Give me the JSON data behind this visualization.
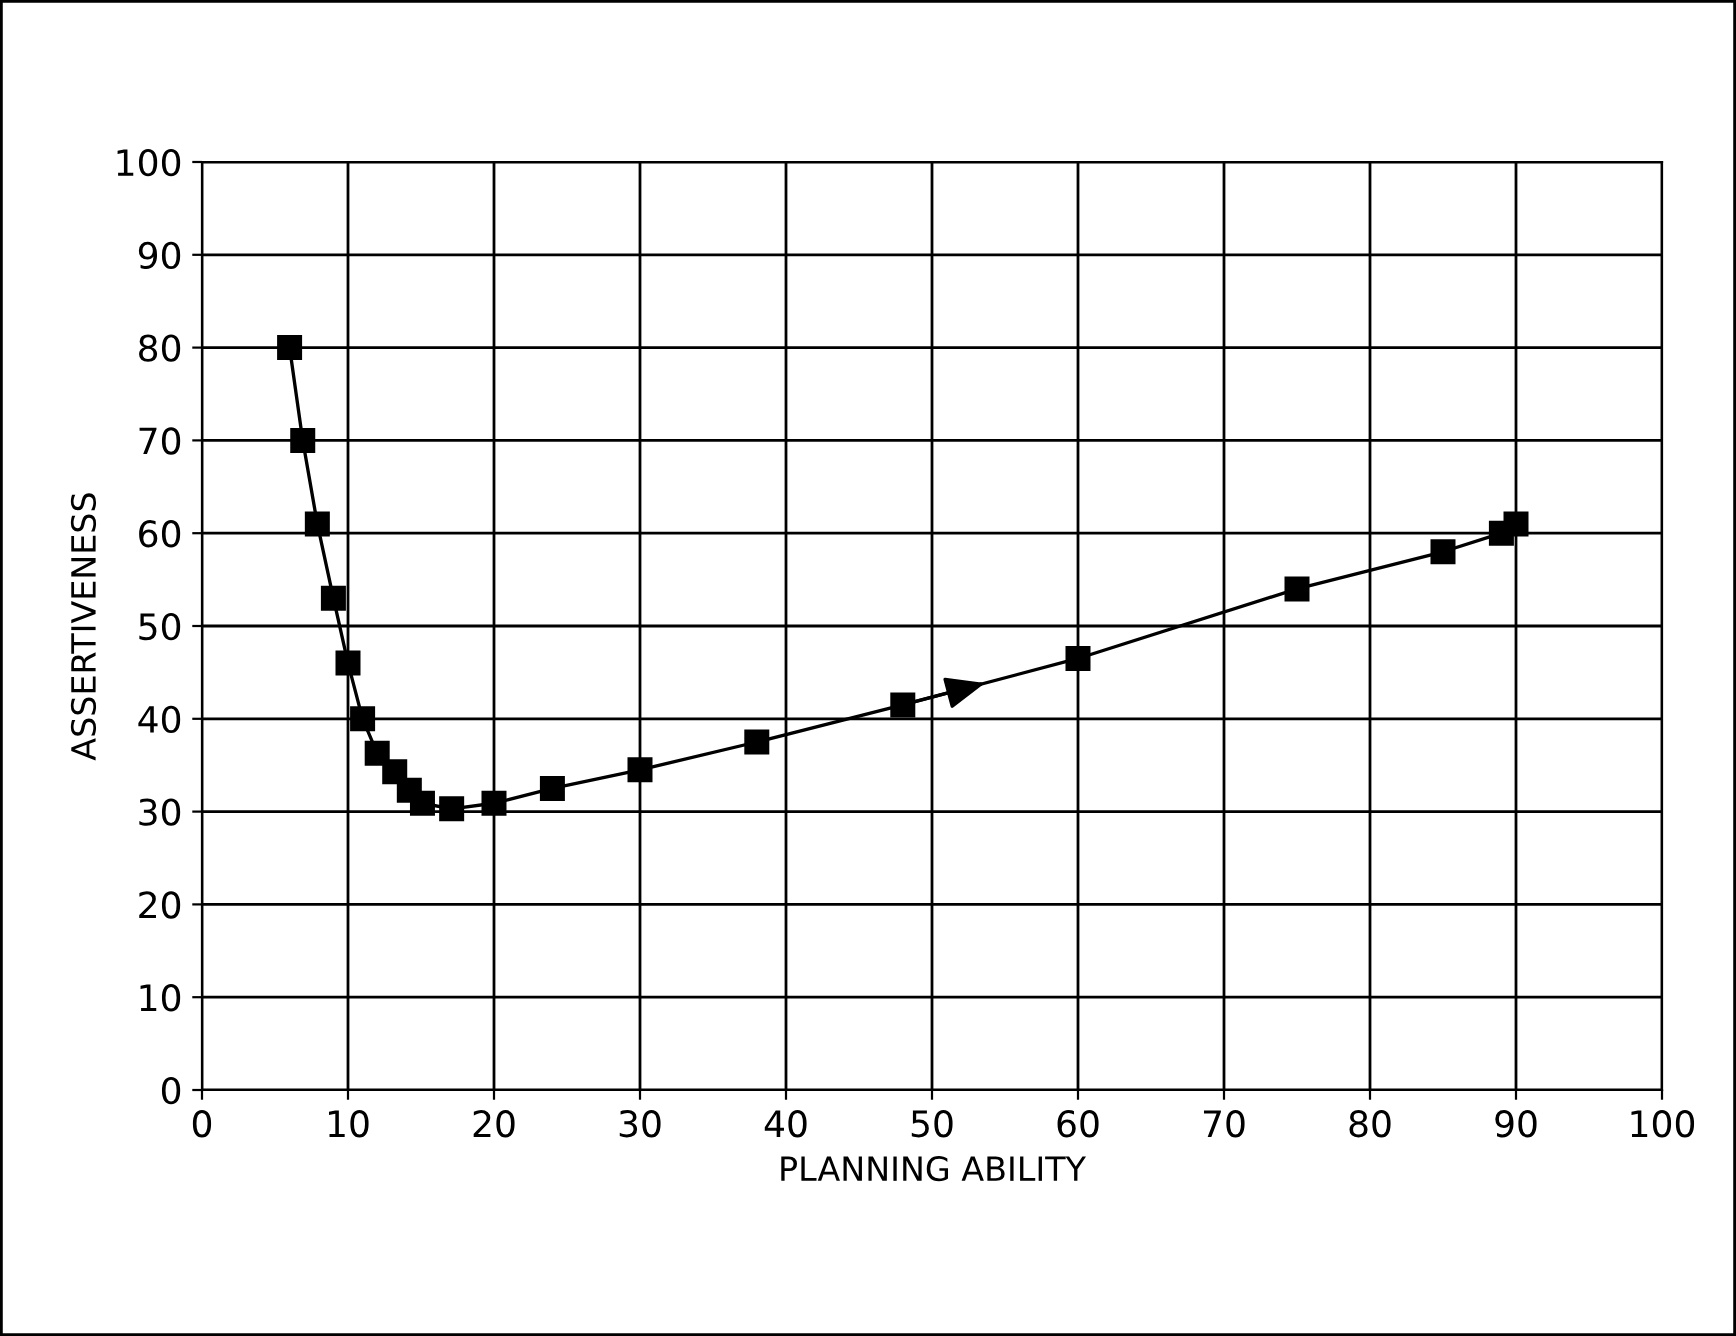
{
  "chart_data": {
    "type": "line",
    "xlabel": "PLANNING ABILITY",
    "ylabel": "ASSERTIVENESS",
    "x": [
      6,
      6.9,
      7.9,
      9,
      10,
      11,
      12,
      13.2,
      14.2,
      15.1,
      17.1,
      20,
      24,
      30,
      38,
      48,
      60,
      75,
      85,
      89,
      90
    ],
    "series": [
      {
        "color": "#000000",
        "values": [
          80,
          70,
          61,
          53,
          46,
          40,
          36.3,
          34.3,
          32.3,
          30.9,
          30.3,
          30.9,
          32.5,
          34.5,
          37.5,
          41.5,
          46.5,
          54,
          58,
          60,
          61
        ]
      }
    ],
    "xlim": [
      0,
      100
    ],
    "xticks": [
      0,
      10,
      20,
      30,
      40,
      50,
      60,
      70,
      80,
      90,
      100
    ],
    "ylim": [
      0,
      100
    ],
    "yticks": [
      0,
      10,
      20,
      30,
      40,
      50,
      60,
      70,
      80,
      90,
      100
    ],
    "grid": true,
    "marker": "square",
    "line_style": "solid",
    "legend": false
  }
}
